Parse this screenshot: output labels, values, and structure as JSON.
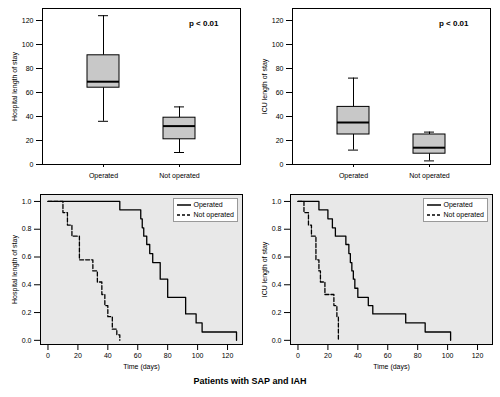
{
  "caption": "Patients with SAP and IAH",
  "chart_data": [
    {
      "type": "box",
      "categories": [
        "Operated",
        "Not operated"
      ],
      "min": [
        36,
        10
      ],
      "q1": [
        64,
        21
      ],
      "median": [
        69,
        32
      ],
      "q3": [
        91,
        39
      ],
      "max": [
        124,
        48
      ],
      "color": "#c8c8c8",
      "ylabel": "Hospital length of stay",
      "ylim": [
        0,
        130
      ],
      "yticks": [
        0,
        20,
        40,
        60,
        80,
        100,
        120
      ],
      "annotation": "p < 0.01"
    },
    {
      "type": "box",
      "categories": [
        "Operated",
        "Not operated"
      ],
      "min": [
        12,
        3
      ],
      "q1": [
        25,
        9
      ],
      "median": [
        35,
        14
      ],
      "q3": [
        48,
        25
      ],
      "max": [
        72,
        27
      ],
      "color": "#c8c8c8",
      "ylabel": "ICU length of stay",
      "ylim": [
        0,
        130
      ],
      "yticks": [
        0,
        20,
        40,
        60,
        80,
        100,
        120
      ],
      "annotation": "p < 0.01"
    },
    {
      "type": "line",
      "xlabel": "Time (days)",
      "ylabel": "Hospital length of stay",
      "xlim": [
        -5,
        130
      ],
      "xticks": [
        0,
        20,
        40,
        60,
        80,
        100,
        120
      ],
      "ylim": [
        -0.03,
        1.05
      ],
      "yticks": [
        {
          "value": 0,
          "label": "0.0"
        },
        {
          "value": 0.2,
          "label": "0.2"
        },
        {
          "value": 0.4,
          "label": "0.4"
        },
        {
          "value": 0.6,
          "label": "0.6"
        },
        {
          "value": 0.8,
          "label": "0.8"
        },
        {
          "value": 1,
          "label": "1.0"
        }
      ],
      "legend": "top-right",
      "series": [
        {
          "name": "Operated",
          "color": "#000000",
          "line_style": "solid",
          "x": [
            0,
            48,
            62,
            63,
            64,
            66,
            68,
            70,
            75,
            80,
            92,
            99,
            103,
            126
          ],
          "values": [
            1,
            0.94,
            0.875,
            0.81,
            0.75,
            0.69,
            0.625,
            0.56,
            0.44,
            0.31,
            0.19,
            0.125,
            0.06,
            0
          ]
        },
        {
          "name": "Not operated",
          "color": "#000000",
          "line_style": "dashed",
          "x": [
            0,
            10,
            13,
            16,
            21,
            30,
            33,
            36,
            38,
            40,
            43,
            46,
            48
          ],
          "values": [
            1,
            0.92,
            0.83,
            0.75,
            0.58,
            0.5,
            0.42,
            0.33,
            0.25,
            0.17,
            0.08,
            0.04,
            0
          ]
        }
      ]
    },
    {
      "type": "line",
      "xlabel": "Time (days)",
      "ylabel": "ICU length of stay",
      "xlim": [
        -5,
        130
      ],
      "xticks": [
        0,
        20,
        40,
        60,
        80,
        100,
        120
      ],
      "ylim": [
        -0.03,
        1.05
      ],
      "yticks": [
        {
          "value": 0,
          "label": "0.0"
        },
        {
          "value": 0.2,
          "label": "0.2"
        },
        {
          "value": 0.4,
          "label": "0.4"
        },
        {
          "value": 0.6,
          "label": "0.6"
        },
        {
          "value": 0.8,
          "label": "0.8"
        },
        {
          "value": 1,
          "label": "1.0"
        }
      ],
      "legend": "top-right",
      "series": [
        {
          "name": "Operated",
          "color": "#000000",
          "line_style": "solid",
          "x": [
            0,
            14,
            20,
            23,
            25,
            32,
            34,
            35,
            36,
            37,
            38,
            40,
            47,
            50,
            72,
            85,
            102
          ],
          "values": [
            1,
            0.94,
            0.875,
            0.81,
            0.75,
            0.69,
            0.625,
            0.56,
            0.5,
            0.44,
            0.375,
            0.31,
            0.25,
            0.19,
            0.125,
            0.06,
            0
          ]
        },
        {
          "name": "Not operated",
          "color": "#000000",
          "line_style": "dashed",
          "x": [
            0,
            4,
            7,
            9,
            12,
            14,
            15,
            18,
            24,
            26,
            27
          ],
          "values": [
            1,
            0.92,
            0.83,
            0.75,
            0.58,
            0.5,
            0.42,
            0.33,
            0.25,
            0.17,
            0
          ]
        }
      ]
    }
  ]
}
